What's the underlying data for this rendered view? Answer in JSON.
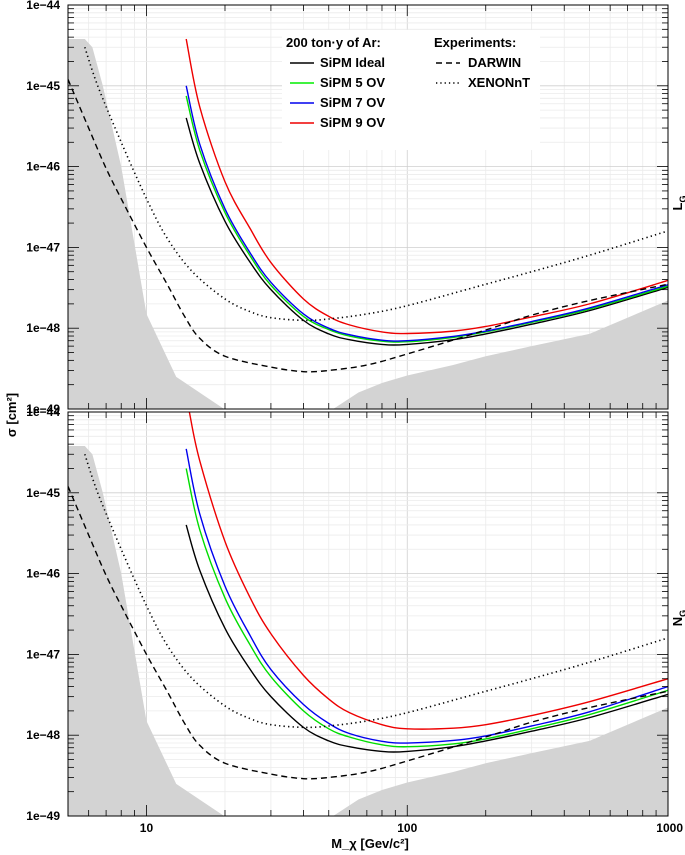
{
  "chart_data": {
    "type": "line",
    "xscale": "log",
    "yscale": "log",
    "xlim": [
      5,
      1000
    ],
    "ylim": [
      1e-49,
      1e-44
    ],
    "xlabel": "M_χ [Gev/c²]",
    "ylabel": "σ [cm²]",
    "x_ticks": [
      "10",
      "100",
      "1000"
    ],
    "y_ticks": [
      "1e−49",
      "1e−48",
      "1e−47",
      "1e−46",
      "1e−45",
      "1e−44"
    ],
    "legend_title_left": "200 ton·y of Ar:",
    "legend_title_right": "Experiments:",
    "legend": {
      "sipm": [
        {
          "name": "SiPM Ideal",
          "color": "#000000"
        },
        {
          "name": "SiPM 5 OV",
          "color": "#00ee00"
        },
        {
          "name": "SiPM 7 OV",
          "color": "#0000ee"
        },
        {
          "name": "SiPM 9 OV",
          "color": "#ee0000"
        }
      ],
      "experiments": [
        {
          "name": "DARWIN",
          "style": "dashed"
        },
        {
          "name": "XENONnT",
          "style": "dotted"
        }
      ]
    },
    "panels": [
      {
        "label": "L",
        "label_sub": "G",
        "series": [
          {
            "name": "SiPM Ideal",
            "color": "#000000",
            "x": [
              14.2,
              16,
              20,
              25,
              30,
              40,
              50,
              60,
              80,
              100,
              150,
              200,
              300,
              500,
              1000
            ],
            "y": [
              4e-46,
              1.1e-46,
              2.1e-47,
              6.5e-48,
              3e-48,
              1.25e-48,
              8.5e-49,
              7.2e-49,
              6.3e-49,
              6.3e-49,
              7.2e-49,
              8.5e-49,
              1.12e-48,
              1.65e-48,
              3.2e-48
            ]
          },
          {
            "name": "SiPM 5 OV",
            "color": "#00dd00",
            "x": [
              14.2,
              16,
              20,
              25,
              30,
              40,
              50,
              60,
              80,
              100,
              150,
              200,
              300,
              500,
              1000
            ],
            "y": [
              7.5e-46,
              1.6e-46,
              2.7e-47,
              7.8e-48,
              3.4e-48,
              1.4e-48,
              9.6e-49,
              8e-49,
              6.9e-49,
              6.8e-49,
              7.7e-49,
              9e-49,
              1.18e-48,
              1.72e-48,
              3.3e-48
            ]
          },
          {
            "name": "SiPM 7 OV",
            "color": "#0000ee",
            "x": [
              14.2,
              16,
              20,
              25,
              30,
              40,
              50,
              60,
              80,
              100,
              150,
              200,
              300,
              500,
              1000
            ],
            "y": [
              1e-45,
              1.9e-46,
              3e-47,
              8.5e-48,
              3.7e-48,
              1.5e-48,
              1e-48,
              8.3e-49,
              7.1e-49,
              7e-49,
              7.9e-49,
              9.2e-49,
              1.21e-48,
              1.78e-48,
              3.45e-48
            ]
          },
          {
            "name": "SiPM 9 OV",
            "color": "#ee0000",
            "x": [
              14.2,
              16,
              20,
              25,
              30,
              40,
              50,
              60,
              80,
              100,
              150,
              200,
              300,
              500,
              1000
            ],
            "y": [
              3.8e-45,
              5.5e-46,
              6.5e-47,
              1.7e-47,
              6.5e-48,
              2.3e-48,
              1.4e-48,
              1.1e-48,
              9e-49,
              8.6e-49,
              9.2e-49,
              1.05e-48,
              1.38e-48,
              2e-48,
              3.9e-48
            ]
          },
          {
            "name": "DARWIN",
            "color": "#000000",
            "style": "dashed",
            "x": [
              5,
              6,
              7,
              8,
              10,
              12,
              14,
              16,
              20,
              30,
              40,
              50,
              70,
              100,
              200,
              300,
              500,
              1000
            ],
            "y": [
              1.2e-45,
              3e-46,
              9.5e-47,
              4e-47,
              1e-47,
              3.5e-48,
              1.4e-48,
              7.5e-49,
              4.5e-49,
              3.3e-49,
              2.9e-49,
              3e-49,
              3.5e-49,
              4.8e-49,
              9.5e-49,
              1.45e-48,
              2.2e-48,
              3.5e-48
            ]
          },
          {
            "name": "XENONnT",
            "color": "#000000",
            "style": "dotted",
            "x": [
              5.8,
              6.5,
              8,
              10,
              12,
              15,
              20,
              25,
              30,
              40,
              50,
              70,
              100,
              200,
              300,
              500,
              1000
            ],
            "y": [
              3e-45,
              1e-45,
              2e-46,
              4e-47,
              1.3e-47,
              5e-48,
              2.3e-48,
              1.6e-48,
              1.35e-48,
              1.25e-48,
              1.3e-48,
              1.5e-48,
              1.9e-48,
              3.5e-48,
              5e-48,
              8e-48,
              1.6e-47
            ]
          }
        ],
        "shaded_region": {
          "x": [
            5,
            5.8,
            6.2,
            6.8,
            8,
            10,
            13,
            17,
            22,
            30,
            38,
            45,
            52,
            65,
            80,
            100,
            150,
            200,
            300,
            500,
            1000
          ],
          "y": [
            3.8e-45,
            3.8e-45,
            3e-45,
            1e-45,
            1e-46,
            1.5e-48,
            2.5e-49,
            1.4e-49,
            8e-50,
            7e-50,
            7e-50,
            7.8e-50,
            1e-49,
            1.6e-49,
            2.1e-49,
            2.6e-49,
            3.5e-49,
            4.5e-49,
            6e-49,
            8.5e-49,
            2.2e-48
          ]
        }
      },
      {
        "label": "N",
        "label_sub": "G",
        "series": [
          {
            "name": "SiPM Ideal",
            "color": "#000000",
            "x": [
              14.2,
              16,
              20,
              25,
              30,
              40,
              50,
              60,
              80,
              100,
              150,
              200,
              300,
              500,
              1000
            ],
            "y": [
              4e-46,
              1.1e-46,
              2.1e-47,
              6.5e-48,
              3e-48,
              1.25e-48,
              8.5e-49,
              7.2e-49,
              6.3e-49,
              6.3e-49,
              7.2e-49,
              8.5e-49,
              1.12e-48,
              1.65e-48,
              3.2e-48
            ]
          },
          {
            "name": "SiPM 5 OV",
            "color": "#00dd00",
            "x": [
              14.2,
              16,
              20,
              25,
              30,
              40,
              50,
              60,
              80,
              100,
              150,
              200,
              300,
              500,
              1000
            ],
            "y": [
              2e-45,
              3.5e-46,
              5e-47,
              1.3e-47,
              5.3e-48,
              2e-48,
              1.2e-48,
              9.5e-49,
              7.6e-49,
              7.2e-49,
              7.8e-49,
              9e-49,
              1.2e-48,
              1.8e-48,
              3.6e-48
            ]
          },
          {
            "name": "SiPM 7 OV",
            "color": "#0000ee",
            "x": [
              14.2,
              16,
              20,
              25,
              30,
              40,
              50,
              60,
              80,
              100,
              150,
              200,
              300,
              500,
              1000
            ],
            "y": [
              3.5e-45,
              5.5e-46,
              7e-47,
              1.7e-47,
              6.5e-48,
              2.4e-48,
              1.4e-48,
              1.05e-48,
              8.4e-49,
              8e-49,
              8.6e-49,
              9.8e-49,
              1.3e-48,
              1.95e-48,
              4e-48
            ]
          },
          {
            "name": "SiPM 9 OV",
            "color": "#ee0000",
            "x": [
              14.6,
              16,
              20,
              25,
              30,
              40,
              50,
              60,
              80,
              100,
              150,
              200,
              300,
              500,
              1000
            ],
            "y": [
              1e-44,
              2.5e-45,
              2.5e-46,
              5e-47,
              1.8e-47,
              5.5e-48,
              2.8e-48,
              1.9e-48,
              1.35e-48,
              1.2e-48,
              1.22e-48,
              1.35e-48,
              1.75e-48,
              2.6e-48,
              5e-48
            ]
          },
          {
            "name": "DARWIN",
            "color": "#000000",
            "style": "dashed",
            "x": [
              5,
              6,
              7,
              8,
              10,
              12,
              14,
              16,
              20,
              30,
              40,
              50,
              70,
              100,
              200,
              300,
              500,
              1000
            ],
            "y": [
              1.2e-45,
              3e-46,
              9.5e-47,
              4e-47,
              1e-47,
              3.5e-48,
              1.4e-48,
              7.5e-49,
              4.5e-49,
              3.3e-49,
              2.9e-49,
              3e-49,
              3.5e-49,
              4.8e-49,
              9.5e-49,
              1.45e-48,
              2.2e-48,
              3.5e-48
            ]
          },
          {
            "name": "XENONnT",
            "color": "#000000",
            "style": "dotted",
            "x": [
              5.8,
              6.5,
              8,
              10,
              12,
              15,
              20,
              25,
              30,
              40,
              50,
              70,
              100,
              200,
              300,
              500,
              1000
            ],
            "y": [
              3e-45,
              1e-45,
              2e-46,
              4e-47,
              1.3e-47,
              5e-48,
              2.3e-48,
              1.6e-48,
              1.35e-48,
              1.25e-48,
              1.3e-48,
              1.5e-48,
              1.9e-48,
              3.5e-48,
              5e-48,
              8e-48,
              1.6e-47
            ]
          }
        ],
        "shaded_region": {
          "x": [
            5,
            5.8,
            6.2,
            6.8,
            8,
            10,
            13,
            17,
            22,
            30,
            38,
            45,
            52,
            65,
            80,
            100,
            150,
            200,
            300,
            500,
            1000
          ],
          "y": [
            3.8e-45,
            3.8e-45,
            3e-45,
            1e-45,
            1e-46,
            1.5e-48,
            2.5e-49,
            1.4e-49,
            8e-50,
            7e-50,
            7e-50,
            7.8e-50,
            1e-49,
            1.6e-49,
            2.1e-49,
            2.6e-49,
            3.5e-49,
            4.5e-49,
            6e-49,
            8.5e-49,
            2.2e-48
          ]
        }
      }
    ]
  }
}
